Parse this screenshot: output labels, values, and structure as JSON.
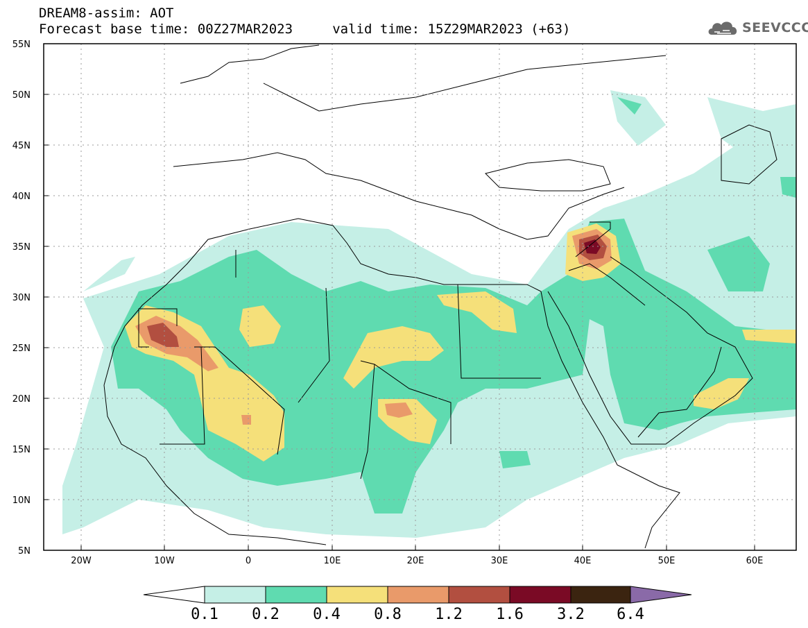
{
  "header": {
    "title": "DREAM8-assim: AOT",
    "subtitle": "Forecast base time: 00Z27MAR2023     valid time: 15Z29MAR2023 (+63)",
    "logo_text": "SEEVCCC"
  },
  "map": {
    "lat_labels": [
      "55N",
      "50N",
      "45N",
      "40N",
      "35N",
      "30N",
      "25N",
      "20N",
      "15N",
      "10N",
      "5N"
    ],
    "lon_labels": [
      "20W",
      "10W",
      "0",
      "10E",
      "20E",
      "30E",
      "40E",
      "50E",
      "60E"
    ],
    "lon_range": [
      -25,
      65
    ],
    "lat_range": [
      5,
      55
    ],
    "grid": "dotted"
  },
  "colorbar": {
    "labels": [
      "0.1",
      "0.2",
      "0.4",
      "0.8",
      "1.2",
      "1.6",
      "3.2",
      "6.4"
    ],
    "colors": [
      "#ffffff",
      "#c5efe6",
      "#5fdbb0",
      "#f5e07a",
      "#e99a6a",
      "#b24f40",
      "#7a0a25",
      "#3b2410",
      "#8a6aa8"
    ]
  }
}
